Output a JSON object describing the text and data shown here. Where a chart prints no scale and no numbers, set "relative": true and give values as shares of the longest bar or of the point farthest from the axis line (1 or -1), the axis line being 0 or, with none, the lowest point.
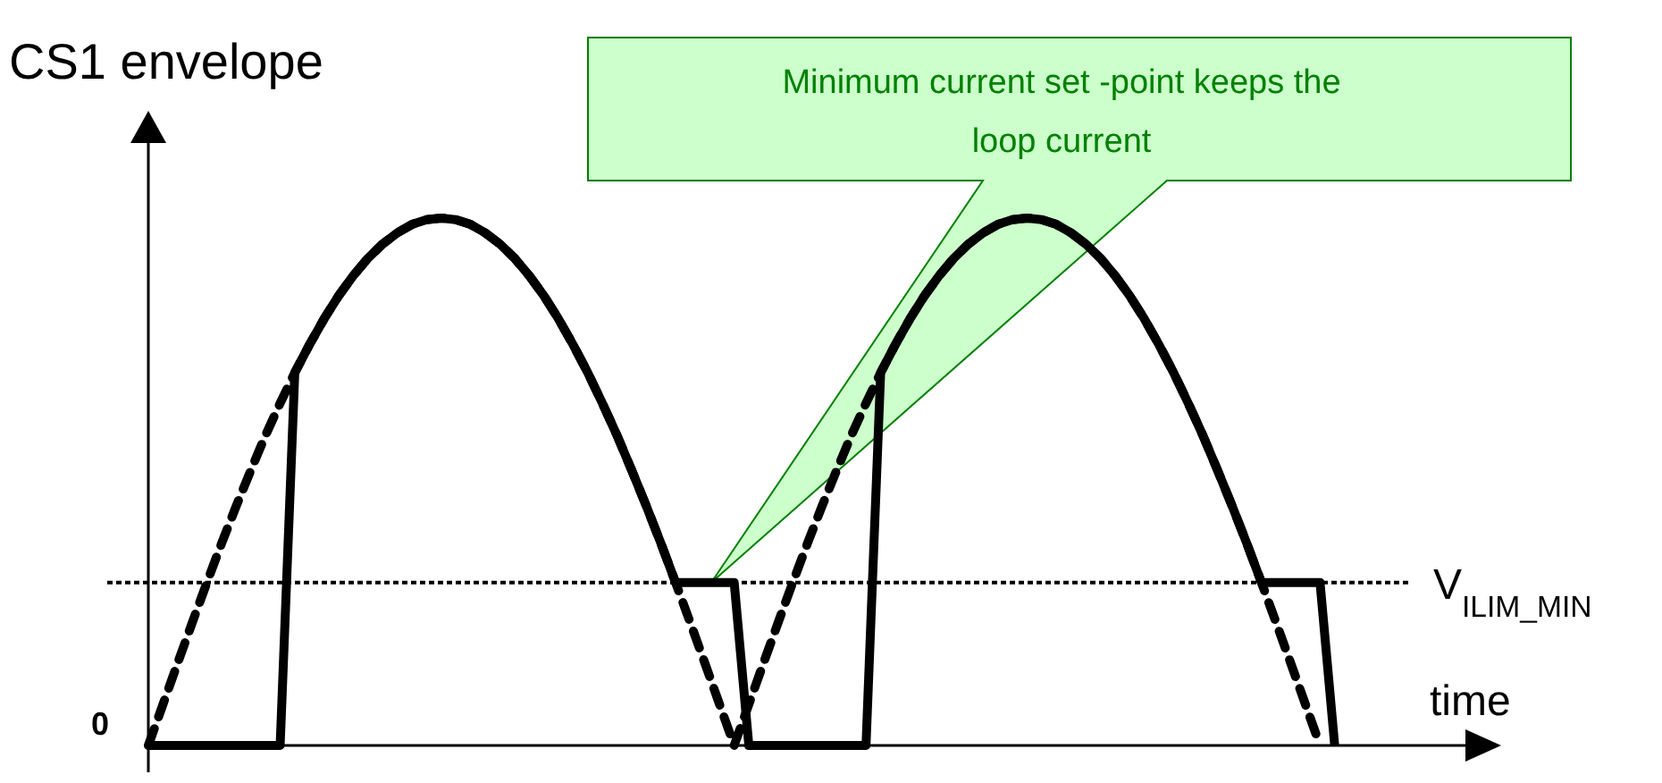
{
  "chart_data": {
    "type": "line",
    "relative": true,
    "ylabel": "CS1 envelope",
    "xlabel": "time",
    "categories": [
      null,
      null,
      null,
      null,
      null,
      null,
      null,
      null,
      null,
      null,
      null,
      null,
      null,
      null,
      null,
      null,
      null,
      null,
      null,
      null,
      null,
      null,
      null,
      null,
      null,
      null,
      null,
      null,
      null,
      null,
      null,
      null,
      null,
      null,
      null,
      null,
      null,
      null,
      null,
      null,
      null,
      null,
      null,
      null,
      null,
      null,
      null,
      null,
      null,
      null,
      null,
      null,
      null,
      null,
      null,
      null,
      null,
      null,
      null,
      null,
      null,
      null,
      null,
      null,
      null,
      null,
      null,
      null,
      null,
      null,
      null,
      null,
      null,
      null,
      null,
      null,
      null,
      null,
      null,
      null,
      null,
      null,
      null,
      null,
      null,
      null,
      null,
      null,
      null,
      null,
      null,
      null,
      null
    ],
    "series": [
      {
        "color": "#000000",
        "line_style": "dashed",
        "values": [
          0,
          0.078,
          0.156,
          0.233,
          0.309,
          0.383,
          0.454,
          0.522,
          0.588,
          0.649,
          0.707,
          0.76,
          0.809,
          0.853,
          0.891,
          0.924,
          0.951,
          0.972,
          0.988,
          0.997,
          1,
          0.997,
          0.988,
          0.972,
          0.951,
          0.924,
          0.891,
          0.853,
          0.809,
          0.76,
          0.707,
          0.649,
          0.588,
          0.522,
          0.454,
          0.383,
          0.309,
          0.233,
          0.156,
          0.078,
          0,
          0.078,
          0.156,
          0.233,
          0.309,
          0.383,
          0.454,
          0.522,
          0.588,
          0.649,
          0.707,
          0.76,
          0.809,
          0.853,
          0.891,
          0.924,
          0.951,
          0.972,
          0.988,
          0.997,
          1,
          0.997,
          0.988,
          0.972,
          0.951,
          0.924,
          0.891,
          0.853,
          0.809,
          0.76,
          0.707,
          0.649,
          0.588,
          0.522,
          0.454,
          0.383,
          0.309,
          0.233,
          0.156,
          0.078,
          0,
          null,
          null,
          null,
          null,
          null,
          null,
          null,
          null,
          null,
          null,
          null,
          null
        ]
      },
      {
        "color": "#000000",
        "line_style": "solid",
        "values": [
          0,
          0,
          0,
          0,
          0,
          0,
          0,
          0,
          0,
          0,
          0.707,
          0.76,
          0.809,
          0.853,
          0.891,
          0.924,
          0.951,
          0.972,
          0.988,
          0.997,
          1,
          0.997,
          0.988,
          0.972,
          0.951,
          0.924,
          0.891,
          0.853,
          0.809,
          0.76,
          0.707,
          0.649,
          0.588,
          0.522,
          0.454,
          0.383,
          0.309,
          0.309,
          0.309,
          0.309,
          0.309,
          0,
          0,
          0,
          0,
          0,
          0,
          0,
          0,
          0,
          0.707,
          0.76,
          0.809,
          0.853,
          0.891,
          0.924,
          0.951,
          0.972,
          0.988,
          0.997,
          1,
          0.997,
          0.988,
          0.972,
          0.951,
          0.924,
          0.891,
          0.853,
          0.809,
          0.76,
          0.707,
          0.649,
          0.588,
          0.522,
          0.454,
          0.383,
          0.309,
          0.309,
          0.309,
          0.309,
          0.309,
          0,
          null,
          null,
          null,
          null,
          null,
          null,
          null,
          null,
          null,
          null,
          null
        ]
      }
    ],
    "ref_lines": [
      {
        "axis": "y",
        "value": 0.309,
        "label": "V$_{ILIM_MIN}$",
        "line_style": "dotted"
      }
    ],
    "annotations": [
      "0",
      "Minimum current set -point keeps the loop current"
    ]
  }
}
